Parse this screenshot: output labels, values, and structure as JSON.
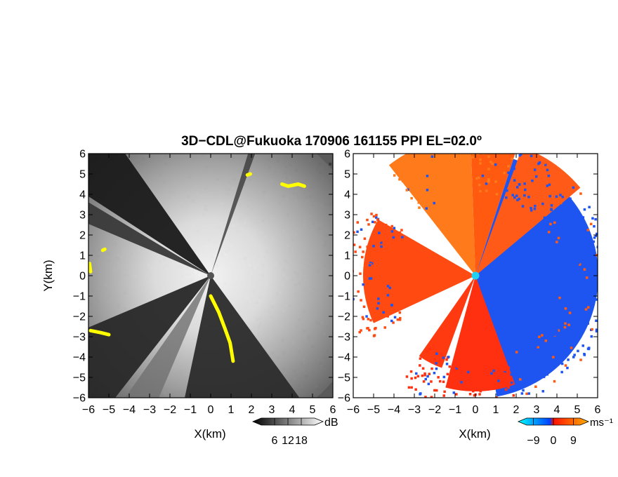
{
  "figure": {
    "title": "3D−CDL@Fukuoka 170906 161155 PPI EL=02.0º"
  },
  "chart_data": [
    {
      "type": "heatmap",
      "name": "snr-ppi",
      "xlabel": "X(km)",
      "ylabel": "Y(km)",
      "xlim": [
        -6,
        6
      ],
      "ylim": [
        -6,
        6
      ],
      "x_ticks": [
        "−6",
        "−5",
        "−4",
        "−3",
        "−2",
        "−1",
        "0",
        "1",
        "2",
        "3",
        "4",
        "5",
        "6"
      ],
      "y_ticks": [
        "−6",
        "−5",
        "−4",
        "−3",
        "−2",
        "−1",
        "0",
        "1",
        "2",
        "3",
        "4",
        "5",
        "6"
      ],
      "radar_center": [
        0,
        0
      ],
      "colorscale": [
        "#000000",
        "#ffffff"
      ],
      "colorbar": {
        "unit": "dB",
        "ticks": [
          "6",
          "12",
          "18"
        ],
        "values": [
          6,
          12,
          18
        ],
        "range": [
          0,
          24
        ]
      },
      "blocked_sectors_deg": [
        [
          125,
          147
        ],
        [
          203,
          232
        ],
        [
          235,
          247
        ],
        [
          149,
          157
        ]
      ],
      "sharp_sector_deg": [
        258,
        306
      ],
      "highlight_color": "#ffff00"
    },
    {
      "type": "heatmap",
      "name": "doppler-velocity-ppi",
      "xlabel": "X(km)",
      "ylabel": "",
      "xlim": [
        -6,
        6
      ],
      "ylim": [
        -6,
        6
      ],
      "x_ticks": [
        "−6",
        "−5",
        "−4",
        "−3",
        "−2",
        "−1",
        "0",
        "1",
        "2",
        "3",
        "4",
        "5",
        "6"
      ],
      "y_ticks": [
        "−6",
        "−5",
        "−4",
        "−3",
        "−2",
        "−1",
        "0",
        "1",
        "2",
        "3",
        "4",
        "5",
        "6"
      ],
      "radar_center": [
        0,
        0
      ],
      "colorscale": [
        "#00ffff",
        "#0050ff",
        "#ff2000",
        "#ffa000"
      ],
      "colorbar": {
        "unit": "ms⁻¹",
        "ticks": [
          "−9",
          "0",
          "9"
        ],
        "values": [
          -9,
          0,
          9
        ],
        "range": [
          -12,
          12
        ]
      },
      "center_marker_color": "#20d0f0",
      "missing_color": "#ffffff"
    }
  ]
}
